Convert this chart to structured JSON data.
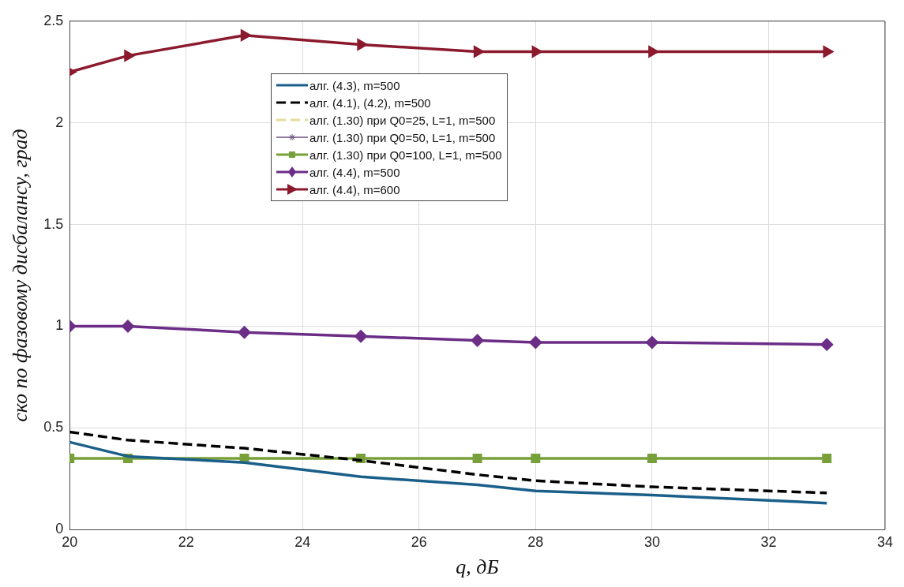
{
  "chart_data": {
    "type": "line",
    "xlabel": "q, дБ",
    "ylabel": "ско по фазовому дисбалансу, град",
    "x": [
      20,
      21,
      23,
      25,
      27,
      28,
      30,
      33
    ],
    "xlim": [
      20,
      34
    ],
    "xticks": [
      20,
      22,
      24,
      26,
      28,
      30,
      32,
      34
    ],
    "ylim": [
      0,
      2.5
    ],
    "yticks": [
      0,
      0.5,
      1,
      1.5,
      2,
      2.5
    ],
    "grid": true,
    "legend": "top",
    "series": [
      {
        "name": "алг. (4.3), m=500",
        "color": "#1a5f8a",
        "line_style": "solid",
        "marker": "none",
        "values": [
          0.43,
          0.36,
          0.33,
          0.26,
          0.22,
          0.19,
          0.17,
          0.13
        ]
      },
      {
        "name": "алг. (4.1), (4.2), m=500",
        "color": "#000000",
        "line_style": "dashed",
        "marker": "none",
        "values": [
          0.48,
          0.44,
          0.4,
          0.34,
          0.27,
          0.24,
          0.21,
          0.18
        ]
      },
      {
        "name": "алг. (1.30) при Q0=25, L=1, m=500",
        "color": "#e3dca0",
        "line_style": "dashed",
        "marker": "none",
        "values": [
          null,
          null,
          null,
          null,
          null,
          null,
          null,
          null
        ]
      },
      {
        "name": "алг. (1.30) при Q0=50, L=1, m=500",
        "color": "#6b4f7f",
        "line_style": "solid",
        "marker": "star",
        "values": [
          null,
          null,
          null,
          null,
          null,
          null,
          null,
          null
        ]
      },
      {
        "name": "алг. (1.30) при Q0=100, L=1, m=500",
        "color": "#77a03a",
        "line_style": "solid",
        "marker": "square",
        "values": [
          0.35,
          0.35,
          0.35,
          0.35,
          0.35,
          0.35,
          0.35,
          0.35
        ]
      },
      {
        "name": "алг. (4.4), m=500",
        "color": "#6c2d87",
        "line_style": "solid",
        "marker": "diamond",
        "values": [
          1.0,
          1.0,
          0.97,
          0.95,
          0.93,
          0.92,
          0.92,
          0.91
        ]
      },
      {
        "name": "алг. (4.4), m=600",
        "color": "#8b1a2e",
        "line_style": "solid",
        "marker": "triangle",
        "values": [
          2.25,
          2.33,
          2.43,
          2.385,
          2.35,
          2.35,
          2.35,
          2.35
        ]
      }
    ]
  }
}
